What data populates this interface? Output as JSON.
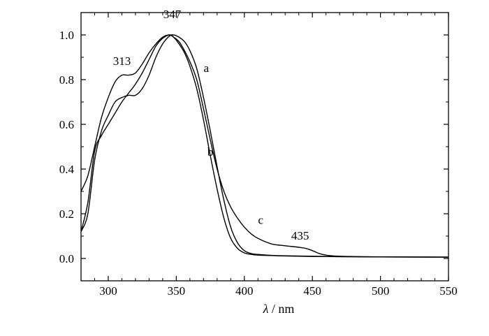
{
  "chart_data": {
    "type": "line",
    "title": "",
    "xlabel": "λ / nm",
    "xlabel_symbol": "λ",
    "xlabel_unit": "/ nm",
    "ylabel": "",
    "xlim": [
      280,
      550
    ],
    "ylim": [
      -0.1,
      1.1
    ],
    "x_ticks": [
      300,
      350,
      400,
      450,
      500,
      550
    ],
    "y_ticks": [
      0.0,
      0.2,
      0.4,
      0.6,
      0.8,
      1.0
    ],
    "x_tick_labels": [
      "300",
      "350",
      "400",
      "450",
      "500",
      "550"
    ],
    "y_tick_labels": [
      "0.0",
      "0.2",
      "0.4",
      "0.6",
      "0.8",
      "1.0"
    ],
    "grid": false,
    "legend": "none",
    "line_color": "#000000",
    "series": [
      {
        "label": "a",
        "x": [
          280,
          285,
          290,
          295,
          300,
          305,
          310,
          315,
          320,
          325,
          330,
          335,
          340,
          345,
          348,
          352,
          356,
          360,
          365,
          370,
          375,
          380,
          385,
          390,
          395,
          400,
          405,
          410,
          420,
          430,
          440,
          450,
          470,
          500,
          550
        ],
        "y": [
          0.12,
          0.2,
          0.44,
          0.57,
          0.64,
          0.7,
          0.72,
          0.73,
          0.73,
          0.76,
          0.82,
          0.9,
          0.96,
          0.995,
          1.0,
          0.99,
          0.97,
          0.93,
          0.85,
          0.72,
          0.57,
          0.41,
          0.26,
          0.14,
          0.07,
          0.035,
          0.022,
          0.018,
          0.014,
          0.012,
          0.011,
          0.01,
          0.008,
          0.007,
          0.006
        ]
      },
      {
        "label": "b",
        "x": [
          280,
          285,
          290,
          295,
          300,
          305,
          310,
          315,
          320,
          325,
          330,
          335,
          340,
          345,
          348,
          352,
          356,
          360,
          365,
          370,
          375,
          380,
          385,
          390,
          395,
          400,
          405,
          410,
          420,
          430,
          440,
          450,
          470,
          500,
          550
        ],
        "y": [
          0.12,
          0.25,
          0.48,
          0.55,
          0.6,
          0.65,
          0.7,
          0.74,
          0.78,
          0.83,
          0.89,
          0.95,
          0.985,
          1.0,
          0.99,
          0.96,
          0.92,
          0.86,
          0.76,
          0.62,
          0.46,
          0.31,
          0.18,
          0.09,
          0.045,
          0.025,
          0.018,
          0.015,
          0.013,
          0.011,
          0.01,
          0.009,
          0.008,
          0.007,
          0.006
        ]
      },
      {
        "label": "c",
        "x": [
          280,
          285,
          290,
          295,
          300,
          305,
          310,
          315,
          320,
          325,
          330,
          335,
          340,
          345,
          348,
          352,
          356,
          360,
          365,
          370,
          375,
          380,
          385,
          390,
          395,
          400,
          405,
          410,
          420,
          430,
          440,
          445,
          450,
          455,
          460,
          470,
          500,
          550
        ],
        "y": [
          0.3,
          0.37,
          0.5,
          0.63,
          0.72,
          0.79,
          0.82,
          0.82,
          0.83,
          0.87,
          0.92,
          0.96,
          0.99,
          1.0,
          0.99,
          0.97,
          0.93,
          0.88,
          0.8,
          0.67,
          0.53,
          0.4,
          0.3,
          0.23,
          0.18,
          0.14,
          0.11,
          0.09,
          0.065,
          0.057,
          0.05,
          0.045,
          0.035,
          0.022,
          0.015,
          0.01,
          0.007,
          0.006
        ]
      }
    ],
    "annotations": [
      {
        "text": "347",
        "x": 347,
        "y": 1.075
      },
      {
        "text": "313",
        "x": 310,
        "y": 0.865
      },
      {
        "text": "a",
        "x": 372,
        "y": 0.835
      },
      {
        "text": "b",
        "x": 375,
        "y": 0.46
      },
      {
        "text": "c",
        "x": 412,
        "y": 0.155
      },
      {
        "text": "435",
        "x": 441,
        "y": 0.085
      }
    ]
  }
}
